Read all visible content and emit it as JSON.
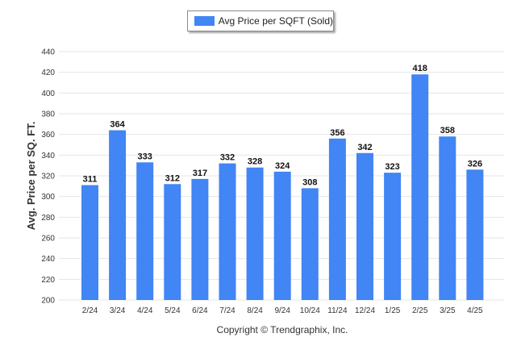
{
  "legend": {
    "label": "Avg Price per SQFT (Sold)",
    "color": "#4285f4"
  },
  "footer": {
    "copyright": "Copyright © Trendgraphix, Inc."
  },
  "chart_data": {
    "type": "bar",
    "title": "",
    "xlabel": "",
    "ylabel": "Avg. Price per SQ. FT.",
    "ylim": [
      200,
      440
    ],
    "yticks": [
      200,
      220,
      240,
      260,
      280,
      300,
      320,
      340,
      360,
      380,
      400,
      420,
      440
    ],
    "grid": true,
    "legend_position": "top-center",
    "categories": [
      "2/24",
      "3/24",
      "4/24",
      "5/24",
      "6/24",
      "7/24",
      "8/24",
      "9/24",
      "10/24",
      "11/24",
      "12/24",
      "1/25",
      "2/25",
      "3/25",
      "4/25"
    ],
    "series": [
      {
        "name": "Avg Price per SQFT (Sold)",
        "color": "#4285f4",
        "values": [
          311,
          364,
          333,
          312,
          317,
          332,
          328,
          324,
          308,
          356,
          342,
          323,
          418,
          358,
          326
        ]
      }
    ]
  }
}
